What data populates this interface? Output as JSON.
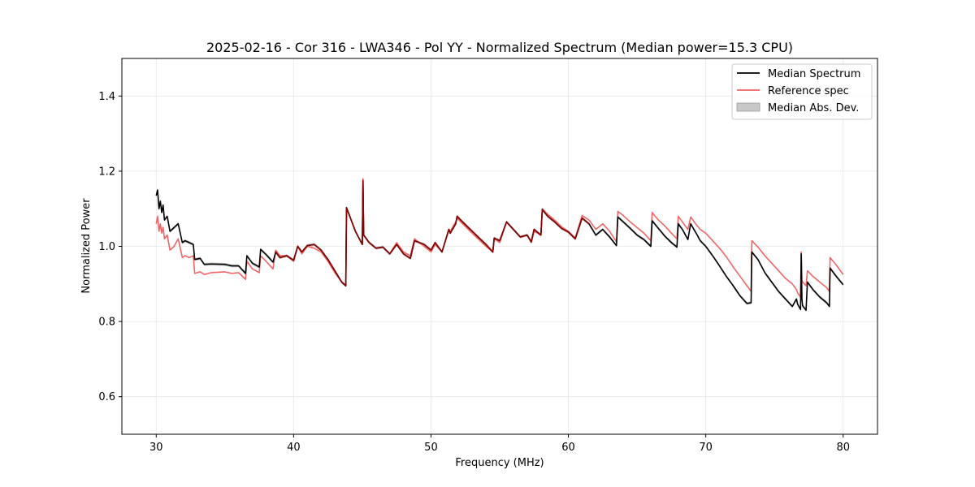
{
  "chart_data": {
    "type": "line",
    "title": "2025-02-16 - Cor 316 - LWA346 - Pol YY - Normalized Spectrum (Median power=15.3 CPU)",
    "xlabel": "Frequency (MHz)",
    "ylabel": "Normalized Power",
    "xlim": [
      27.5,
      82.5
    ],
    "ylim": [
      0.5,
      1.5
    ],
    "xticks": [
      30,
      40,
      50,
      60,
      70,
      80
    ],
    "yticks": [
      0.6,
      0.8,
      1.0,
      1.2,
      1.4
    ],
    "xtick_labels": [
      "30",
      "40",
      "50",
      "60",
      "70",
      "80"
    ],
    "ytick_labels": [
      "0.6",
      "0.8",
      "1.0",
      "1.2",
      "1.4"
    ],
    "grid": true,
    "legend_position": "top-right",
    "legend": [
      "Median Spectrum",
      "Reference spec",
      "Median Abs. Dev."
    ],
    "colors": {
      "median": "#000000",
      "reference": "#f06666",
      "mad": "#c8c8c8",
      "overlap": "#8b0000"
    },
    "mad_halfwidth": 0.004,
    "series": [
      {
        "name": "Median Spectrum",
        "x": [
          30.0,
          30.1,
          30.2,
          30.3,
          30.4,
          30.5,
          30.6,
          30.8,
          31.0,
          31.3,
          31.6,
          31.9,
          32.1,
          32.4,
          32.7,
          32.8,
          33.2,
          33.5,
          34.0,
          35.0,
          35.5,
          36.0,
          36.5,
          36.6,
          37.0,
          37.5,
          37.6,
          38.0,
          38.5,
          38.7,
          39.0,
          39.5,
          40.0,
          40.3,
          40.6,
          41.0,
          41.5,
          42.0,
          42.5,
          43.0,
          43.5,
          43.8,
          43.85,
          44.5,
          45.0,
          45.05,
          45.1,
          45.5,
          46.0,
          46.5,
          47.0,
          47.5,
          48.0,
          48.5,
          48.8,
          49.5,
          50.0,
          50.3,
          50.8,
          51.3,
          51.4,
          51.8,
          51.9,
          52.3,
          53.0,
          54.0,
          54.5,
          54.6,
          55.0,
          55.5,
          56.0,
          56.5,
          57.0,
          57.3,
          57.5,
          58.0,
          58.1,
          58.5,
          59.0,
          59.5,
          60.0,
          60.5,
          61.0,
          61.5,
          62.0,
          62.5,
          63.0,
          63.5,
          63.6,
          64.0,
          64.5,
          65.0,
          65.5,
          66.0,
          66.1,
          66.5,
          67.0,
          67.5,
          67.9,
          68.0,
          68.3,
          68.7,
          68.9,
          69.3,
          69.6,
          70.0,
          70.5,
          71.0,
          71.5,
          72.0,
          72.5,
          73.0,
          73.3,
          73.35,
          73.8,
          74.3,
          74.8,
          75.3,
          75.8,
          76.3,
          76.6,
          76.7,
          76.9,
          76.95,
          77.0,
          77.05,
          77.3,
          77.4,
          77.8,
          78.3,
          78.8,
          78.9,
          79.0,
          79.05,
          79.5,
          80.0
        ],
        "y": [
          1.135,
          1.15,
          1.1,
          1.12,
          1.09,
          1.11,
          1.07,
          1.08,
          1.04,
          1.05,
          1.06,
          1.01,
          1.015,
          1.01,
          1.005,
          0.965,
          0.968,
          0.952,
          0.953,
          0.952,
          0.948,
          0.948,
          0.928,
          0.975,
          0.955,
          0.945,
          0.992,
          0.978,
          0.958,
          0.985,
          0.97,
          0.975,
          0.963,
          1.0,
          0.985,
          1.002,
          1.005,
          0.99,
          0.965,
          0.935,
          0.905,
          0.895,
          1.103,
          1.04,
          1.005,
          1.175,
          1.03,
          1.01,
          0.995,
          0.998,
          0.98,
          1.005,
          0.98,
          0.968,
          1.015,
          1.005,
          0.99,
          1.01,
          0.985,
          1.045,
          1.035,
          1.06,
          1.08,
          1.065,
          1.04,
          1.005,
          0.985,
          1.022,
          1.015,
          1.065,
          1.045,
          1.025,
          1.03,
          1.012,
          1.045,
          1.03,
          1.098,
          1.08,
          1.065,
          1.048,
          1.038,
          1.02,
          1.075,
          1.06,
          1.03,
          1.045,
          1.025,
          1.002,
          1.078,
          1.065,
          1.048,
          1.03,
          1.018,
          1.0,
          1.068,
          1.05,
          1.028,
          1.01,
          0.998,
          1.06,
          1.045,
          1.018,
          1.06,
          1.035,
          1.015,
          1.0,
          0.975,
          0.948,
          0.92,
          0.895,
          0.868,
          0.848,
          0.85,
          0.985,
          0.965,
          0.93,
          0.905,
          0.88,
          0.86,
          0.84,
          0.86,
          0.845,
          0.832,
          0.98,
          0.86,
          0.842,
          0.83,
          0.905,
          0.885,
          0.865,
          0.85,
          0.845,
          0.84,
          0.942,
          0.92,
          0.898
        ]
      },
      {
        "name": "Reference spec",
        "x": [
          30.0,
          30.1,
          30.2,
          30.3,
          30.4,
          30.5,
          30.6,
          30.8,
          31.0,
          31.3,
          31.6,
          31.9,
          32.1,
          32.4,
          32.7,
          32.8,
          33.2,
          33.5,
          34.0,
          35.0,
          35.5,
          36.0,
          36.5,
          36.6,
          37.0,
          37.5,
          37.6,
          38.0,
          38.5,
          38.7,
          39.0,
          39.5,
          40.0,
          40.3,
          40.6,
          41.0,
          41.5,
          42.0,
          42.5,
          43.0,
          43.5,
          43.8,
          43.85,
          44.5,
          45.0,
          45.05,
          45.1,
          45.5,
          46.0,
          46.5,
          47.0,
          47.5,
          48.0,
          48.5,
          48.8,
          49.5,
          50.0,
          50.3,
          50.8,
          51.3,
          51.4,
          51.8,
          51.9,
          52.3,
          53.0,
          54.0,
          54.5,
          54.6,
          55.0,
          55.5,
          56.0,
          56.5,
          57.0,
          57.3,
          57.5,
          58.0,
          58.1,
          58.5,
          59.0,
          59.5,
          60.0,
          60.5,
          61.0,
          61.5,
          62.0,
          62.5,
          63.0,
          63.5,
          63.6,
          64.0,
          64.5,
          65.0,
          65.5,
          66.0,
          66.1,
          66.5,
          67.0,
          67.5,
          67.9,
          68.0,
          68.3,
          68.7,
          68.9,
          69.3,
          69.6,
          70.0,
          70.5,
          71.0,
          71.5,
          72.0,
          72.5,
          73.0,
          73.3,
          73.35,
          73.8,
          74.3,
          74.8,
          75.3,
          75.8,
          76.3,
          76.6,
          76.7,
          76.9,
          76.95,
          77.0,
          77.05,
          77.3,
          77.4,
          77.8,
          78.3,
          78.8,
          78.9,
          79.0,
          79.05,
          79.5,
          80.0
        ],
        "y": [
          1.06,
          1.08,
          1.04,
          1.06,
          1.035,
          1.05,
          1.02,
          1.03,
          0.99,
          1.0,
          1.02,
          0.97,
          0.975,
          0.97,
          0.975,
          0.928,
          0.932,
          0.925,
          0.93,
          0.932,
          0.928,
          0.93,
          0.912,
          0.96,
          0.94,
          0.93,
          0.975,
          0.96,
          0.94,
          0.99,
          0.975,
          0.975,
          0.96,
          1.0,
          0.98,
          1.0,
          0.995,
          0.985,
          0.96,
          0.93,
          0.905,
          0.895,
          1.103,
          1.04,
          1.005,
          1.18,
          1.03,
          1.01,
          0.995,
          0.998,
          0.98,
          1.01,
          0.985,
          0.975,
          1.02,
          1.0,
          0.985,
          1.005,
          0.985,
          1.045,
          1.04,
          1.065,
          1.075,
          1.06,
          1.035,
          1.0,
          0.985,
          1.02,
          1.01,
          1.065,
          1.045,
          1.025,
          1.03,
          1.01,
          1.04,
          1.03,
          1.1,
          1.085,
          1.07,
          1.052,
          1.04,
          1.022,
          1.082,
          1.07,
          1.045,
          1.06,
          1.04,
          1.012,
          1.093,
          1.082,
          1.065,
          1.05,
          1.035,
          1.015,
          1.09,
          1.072,
          1.055,
          1.035,
          1.02,
          1.08,
          1.065,
          1.045,
          1.078,
          1.058,
          1.045,
          1.035,
          1.015,
          0.995,
          0.972,
          0.945,
          0.92,
          0.895,
          0.88,
          1.015,
          0.998,
          0.975,
          0.955,
          0.935,
          0.915,
          0.9,
          0.885,
          0.875,
          0.865,
          0.985,
          0.91,
          0.905,
          0.895,
          0.935,
          0.92,
          0.905,
          0.89,
          0.885,
          0.88,
          0.97,
          0.95,
          0.925
        ]
      }
    ]
  }
}
